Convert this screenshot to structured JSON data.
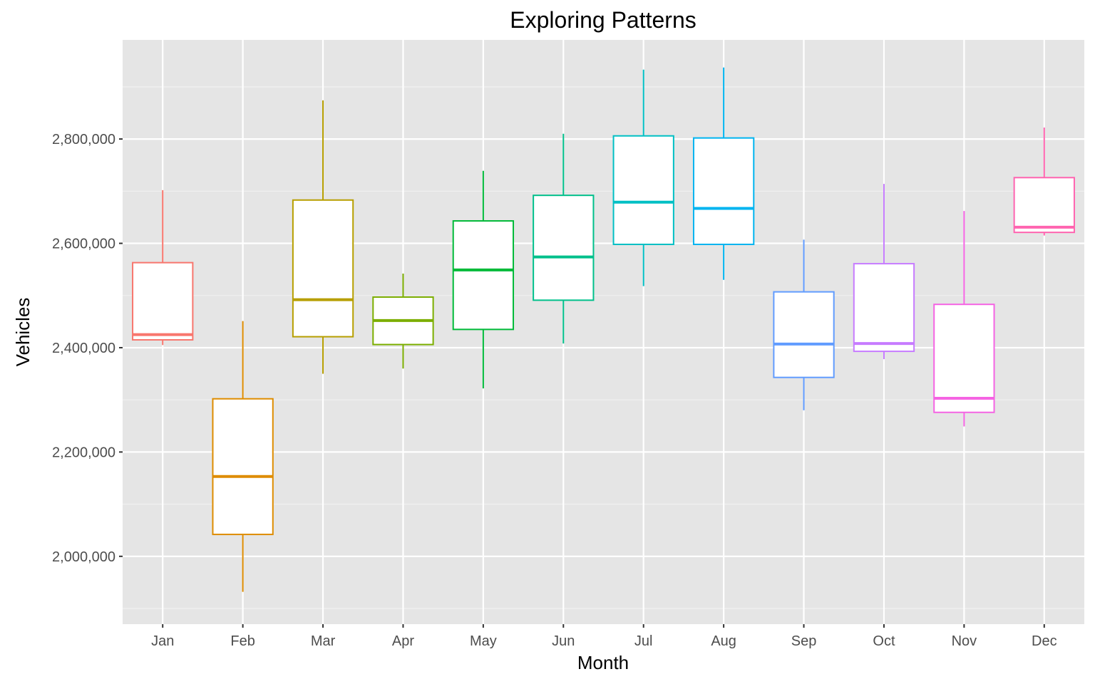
{
  "chart_data": {
    "type": "boxplot",
    "title": "Exploring Patterns",
    "xlabel": "Month",
    "ylabel": "Vehicles",
    "ylim": [
      1870000,
      2990000
    ],
    "y_ticks": [
      2000000,
      2200000,
      2400000,
      2600000,
      2800000
    ],
    "y_tick_labels": [
      "2,000,000",
      "2,200,000",
      "2,400,000",
      "2,600,000",
      "2,800,000"
    ],
    "categories": [
      "Jan",
      "Feb",
      "Mar",
      "Apr",
      "May",
      "Jun",
      "Jul",
      "Aug",
      "Sep",
      "Oct",
      "Nov",
      "Dec"
    ],
    "grid": true,
    "legend": "none",
    "background": "#e5e5e5",
    "boxes": [
      {
        "month": "Jan",
        "min": 2405000,
        "q1": 2415000,
        "median": 2425000,
        "q3": 2563000,
        "max": 2702000,
        "color": "#f8766d"
      },
      {
        "month": "Feb",
        "min": 1932000,
        "q1": 2042000,
        "median": 2153000,
        "q3": 2302000,
        "max": 2451000,
        "color": "#de8c00"
      },
      {
        "month": "Mar",
        "min": 2350000,
        "q1": 2421000,
        "median": 2492000,
        "q3": 2683000,
        "max": 2874000,
        "color": "#b79f00"
      },
      {
        "month": "Apr",
        "min": 2360000,
        "q1": 2406000,
        "median": 2452000,
        "q3": 2497000,
        "max": 2542000,
        "color": "#7cae00"
      },
      {
        "month": "May",
        "min": 2322000,
        "q1": 2435000,
        "median": 2549000,
        "q3": 2643000,
        "max": 2739000,
        "color": "#00ba38"
      },
      {
        "month": "Jun",
        "min": 2408000,
        "q1": 2491000,
        "median": 2574000,
        "q3": 2692000,
        "max": 2810000,
        "color": "#00c08b"
      },
      {
        "month": "Jul",
        "min": 2518000,
        "q1": 2598000,
        "median": 2679000,
        "q3": 2806000,
        "max": 2933000,
        "color": "#00bfc4"
      },
      {
        "month": "Aug",
        "min": 2530000,
        "q1": 2598000,
        "median": 2667000,
        "q3": 2802000,
        "max": 2937000,
        "color": "#00b4f0"
      },
      {
        "month": "Sep",
        "min": 2280000,
        "q1": 2343000,
        "median": 2407000,
        "q3": 2507000,
        "max": 2607000,
        "color": "#619cff"
      },
      {
        "month": "Oct",
        "min": 2378000,
        "q1": 2393000,
        "median": 2408000,
        "q3": 2561000,
        "max": 2714000,
        "color": "#c77cff"
      },
      {
        "month": "Nov",
        "min": 2249000,
        "q1": 2276000,
        "median": 2303000,
        "q3": 2483000,
        "max": 2662000,
        "color": "#f564e3"
      },
      {
        "month": "Dec",
        "min": 2615000,
        "q1": 2621000,
        "median": 2631000,
        "q3": 2726000,
        "max": 2822000,
        "color": "#ff64b0"
      }
    ]
  }
}
